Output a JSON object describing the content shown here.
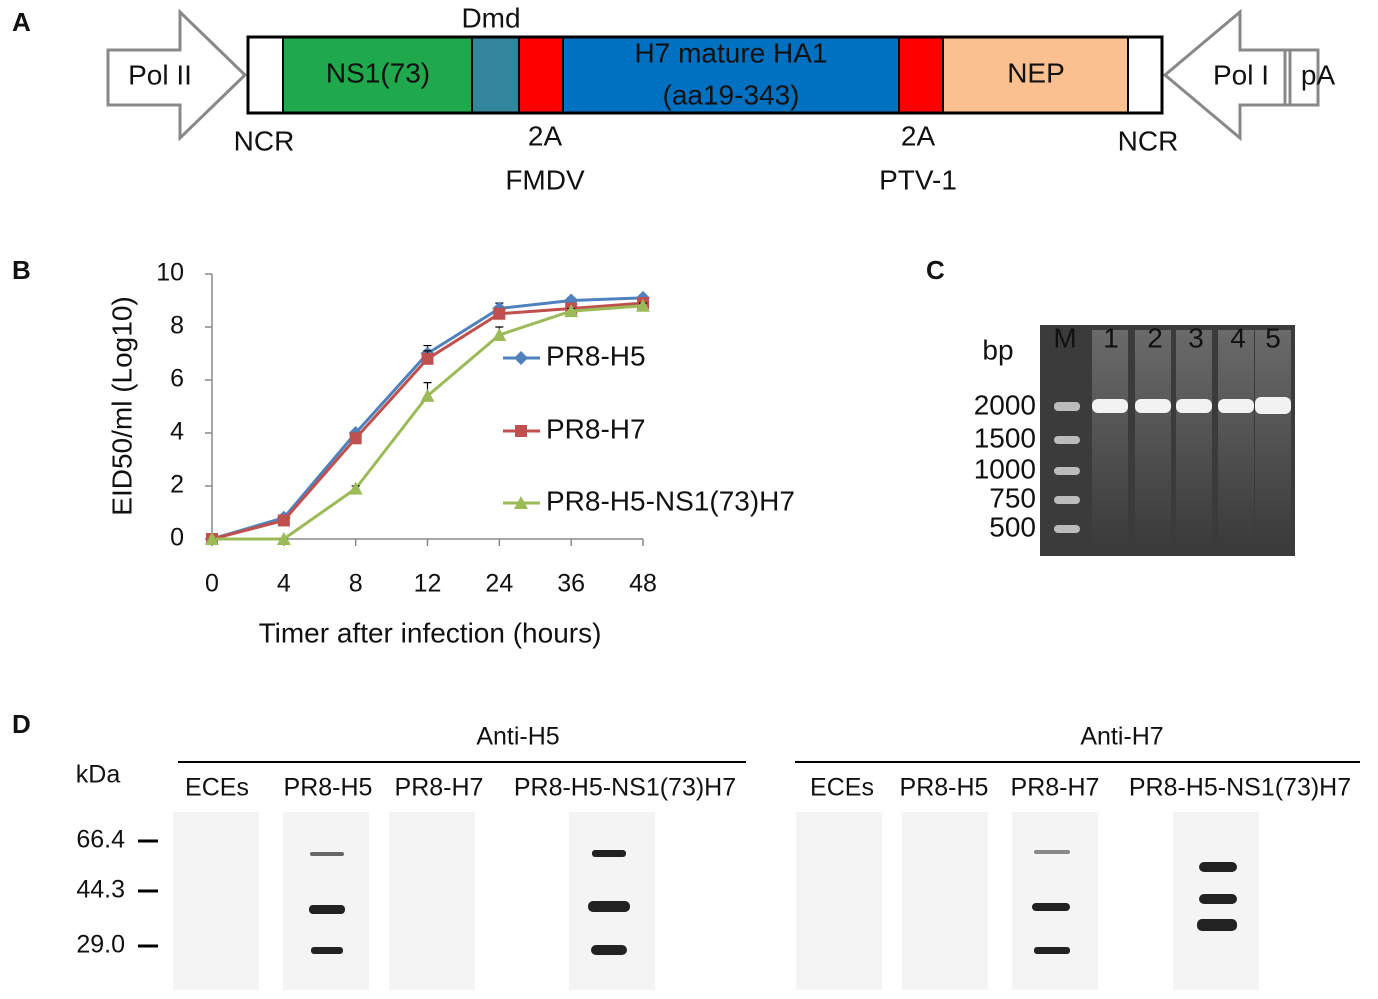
{
  "panel_labels": [
    "A",
    "B",
    "C",
    "D"
  ],
  "construct": {
    "left_promoter": "Pol II",
    "ns1": "NS1(73)",
    "dmd": "Dmd",
    "ha1_line1": "H7 mature HA1",
    "ha1_line2": "(aa19-343)",
    "nep": "NEP",
    "right_promoter": "Pol I",
    "polya": "pA",
    "ncr_left": "NCR",
    "ncr_right": "NCR",
    "site1_top": "2A",
    "site1_bottom": "FMDV",
    "site2_top": "2A",
    "site2_bottom": "PTV-1"
  },
  "chart_data": {
    "type": "line",
    "xlabel": "Timer after infection (hours)",
    "ylabel": "EID50/ml (Log10)",
    "categories": [
      "0",
      "4",
      "8",
      "12",
      "24",
      "36",
      "48"
    ],
    "ylim": [
      0,
      10
    ],
    "yticks": [
      0,
      2,
      4,
      6,
      8,
      10
    ],
    "series": [
      {
        "name": "PR8-H5",
        "color": "#4f81bd",
        "marker": "diamond",
        "values": [
          0,
          0.8,
          4.0,
          7.0,
          8.7,
          9.0,
          9.1
        ],
        "errors": [
          0,
          0.1,
          0.1,
          0.3,
          0.2,
          0.1,
          0.1
        ]
      },
      {
        "name": "PR8-H7",
        "color": "#c0504d",
        "marker": "square",
        "values": [
          0,
          0.7,
          3.8,
          6.8,
          8.5,
          8.7,
          8.9
        ],
        "errors": [
          0,
          0.1,
          0.1,
          0.3,
          0.2,
          0.1,
          0.1
        ]
      },
      {
        "name": "PR8-H5-NS1(73)H7",
        "color": "#9bbb59",
        "marker": "triangle",
        "values": [
          0,
          0,
          1.9,
          5.4,
          7.7,
          8.6,
          8.8
        ],
        "errors": [
          0,
          0,
          0.1,
          0.5,
          0.3,
          0.1,
          0.1
        ]
      }
    ]
  },
  "gel": {
    "unit": "bp",
    "lanes": [
      "M",
      "1",
      "2",
      "3",
      "4",
      "5"
    ],
    "sizes": [
      "2000",
      "1500",
      "1000",
      "750",
      "500"
    ]
  },
  "blot": {
    "unit": "kDa",
    "markers": [
      "66.4",
      "44.3",
      "29.0"
    ],
    "groups": [
      {
        "title": "Anti-H5",
        "lanes": [
          "ECEs",
          "PR8-H5",
          "PR8-H7",
          "PR8-H5-NS1(73)H7"
        ]
      },
      {
        "title": "Anti-H7",
        "lanes": [
          "ECEs",
          "PR8-H5",
          "PR8-H7",
          "PR8-H5-NS1(73)H7"
        ]
      }
    ]
  }
}
